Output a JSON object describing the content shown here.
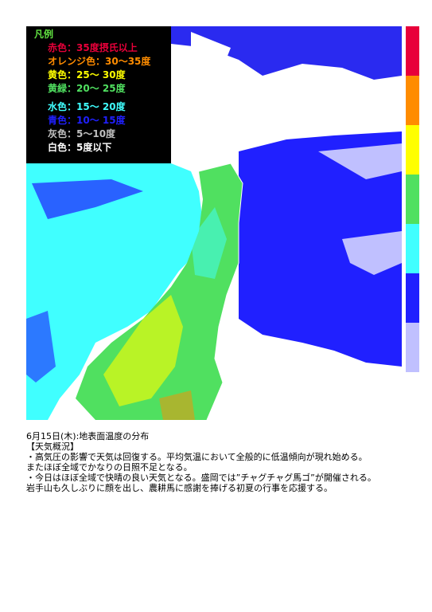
{
  "legend": {
    "title": "凡例",
    "title_color": "#60e040",
    "items": [
      {
        "text": "赤色：35度摂氏以上",
        "color": "#e8003a"
      },
      {
        "text": "オレンジ色：30～35度",
        "color": "#ff8c00"
      },
      {
        "text": "黄色：25～ 30度",
        "color": "#ffff00"
      },
      {
        "text": "黄緑：20～ 25度",
        "color": "#50e060"
      },
      {
        "text": "水色：15～ 20度",
        "color": "#40ffff"
      },
      {
        "text": "青色：10～ 15度",
        "color": "#2020ff"
      },
      {
        "text": "灰色：5～10度",
        "color": "#c0c0c0"
      },
      {
        "text": "白色：5度以下",
        "color": "#ffffff"
      }
    ]
  },
  "caption": "6月15日(木):地表面温度の分布",
  "summary": {
    "heading": "【天気概況】",
    "lines": [
      "・高気圧の影響で天気は回復する。平均気温において全般的に低温傾向が現れ始める。",
      "またほぼ全域でかなりの日照不足となる。",
      "・今日はほぼ全域で快晴の良い天気となる。盛岡では”チャグチャグ馬ゴ”が開催される。",
      "岩手山も久しぶりに顔を出し、農耕馬に感謝を捧げる初夏の行事を応援する。"
    ]
  }
}
